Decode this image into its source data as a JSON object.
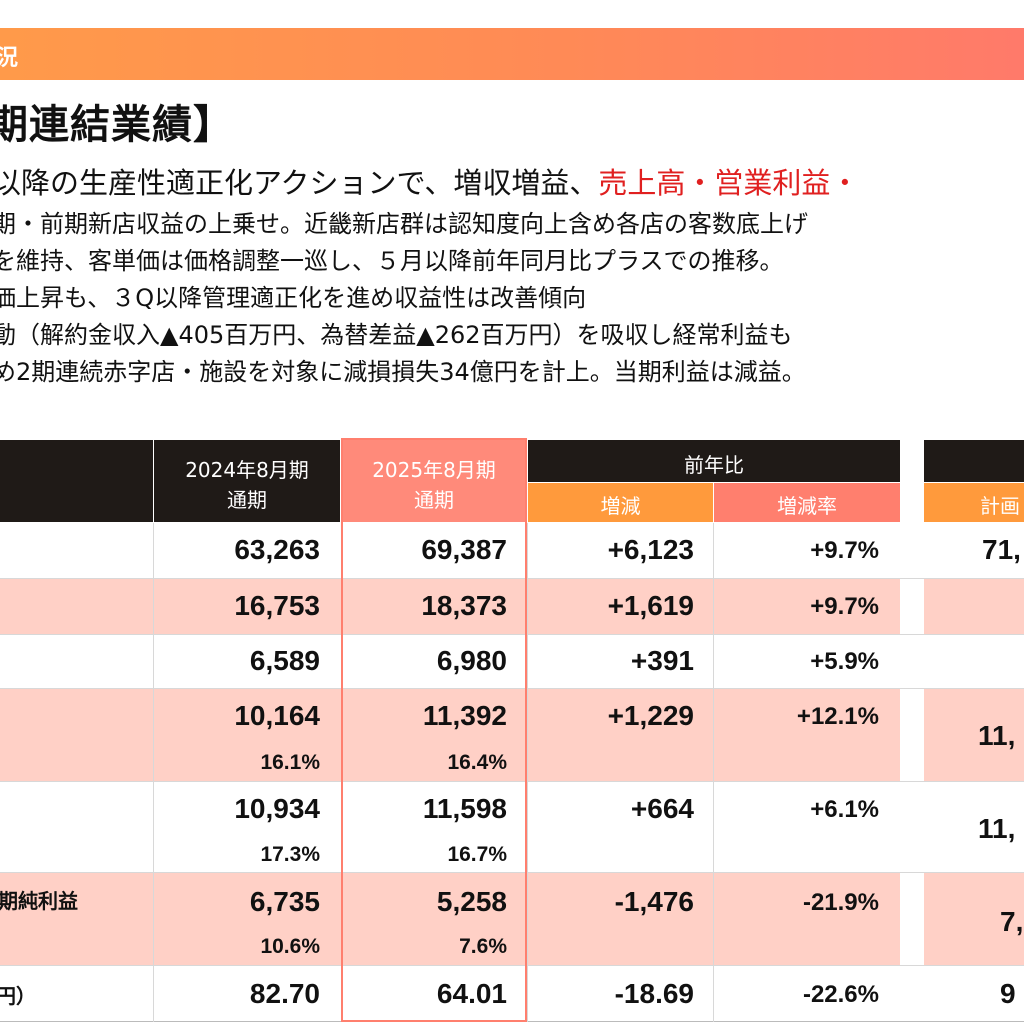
{
  "header": {
    "section_label": "況"
  },
  "title": "期連結業績】",
  "bullets": {
    "line1_black": "以降の生産性適正化アクションで、増収増益、",
    "line1_red": "売上高・営業利益・",
    "line2": "期・前期新店収益の上乗せ。近畿新店群は認知度向上含め各店の客数底上げ",
    "line3": "を維持、客単価は価格調整一巡し、５月以降前年同月比プラスでの推移。",
    "line4": "価上昇も、３Q以降管理適正化を進め収益性は改善傾向",
    "line5": "動（解約金収入▲405百万円、為替差益▲262百万円）を吸収し経常利益も",
    "line6": "め2期連続赤字店・施設を対象に減損損失34億円を計上。当期利益は減益。"
  },
  "table": {
    "headers": {
      "fy2024_line1": "2024年8月期",
      "fy2024_line2": "通期",
      "fy2025_line1": "2025年8月期",
      "fy2025_line2": "通期",
      "yoy": "前年比",
      "change": "増減",
      "change_rate": "増減率",
      "plan": "計画"
    },
    "rows": [
      {
        "label": "",
        "fy2024": "63,263",
        "fy2025": "69,387",
        "change": "+6,123",
        "rate": "+9.7%",
        "plan": "71,",
        "fy2024_sub": "",
        "fy2025_sub": ""
      },
      {
        "label": "",
        "fy2024": "16,753",
        "fy2025": "18,373",
        "change": "+1,619",
        "rate": "+9.7%",
        "plan": "",
        "fy2024_sub": "",
        "fy2025_sub": ""
      },
      {
        "label": "",
        "fy2024": "6,589",
        "fy2025": "6,980",
        "change": "+391",
        "rate": "+5.9%",
        "plan": "",
        "fy2024_sub": "",
        "fy2025_sub": ""
      },
      {
        "label": "",
        "fy2024": "10,164",
        "fy2025": "11,392",
        "change": "+1,229",
        "rate": "+12.1%",
        "plan": "11,",
        "fy2024_sub": "16.1%",
        "fy2025_sub": "16.4%"
      },
      {
        "label": "",
        "fy2024": "10,934",
        "fy2025": "11,598",
        "change": "+664",
        "rate": "+6.1%",
        "plan": "11,",
        "fy2024_sub": "17.3%",
        "fy2025_sub": "16.7%"
      },
      {
        "label": "期純利益",
        "fy2024": "6,735",
        "fy2025": "5,258",
        "change": "-1,476",
        "rate": "-21.9%",
        "plan": "7,",
        "fy2024_sub": "10.6%",
        "fy2025_sub": "7.6%"
      },
      {
        "label": "円）",
        "fy2024": "82.70",
        "fy2025": "64.01",
        "change": "-18.69",
        "rate": "-22.6%",
        "plan": "9",
        "fy2024_sub": "",
        "fy2025_sub": ""
      }
    ]
  },
  "colors": {
    "banner": "#ff8a56",
    "header_dark": "#1f1a17",
    "header_orange": "#ff9a3c",
    "header_salmon": "#ff7f6e",
    "row_pink": "#ffd0c6",
    "accent_red": "#e02020"
  }
}
